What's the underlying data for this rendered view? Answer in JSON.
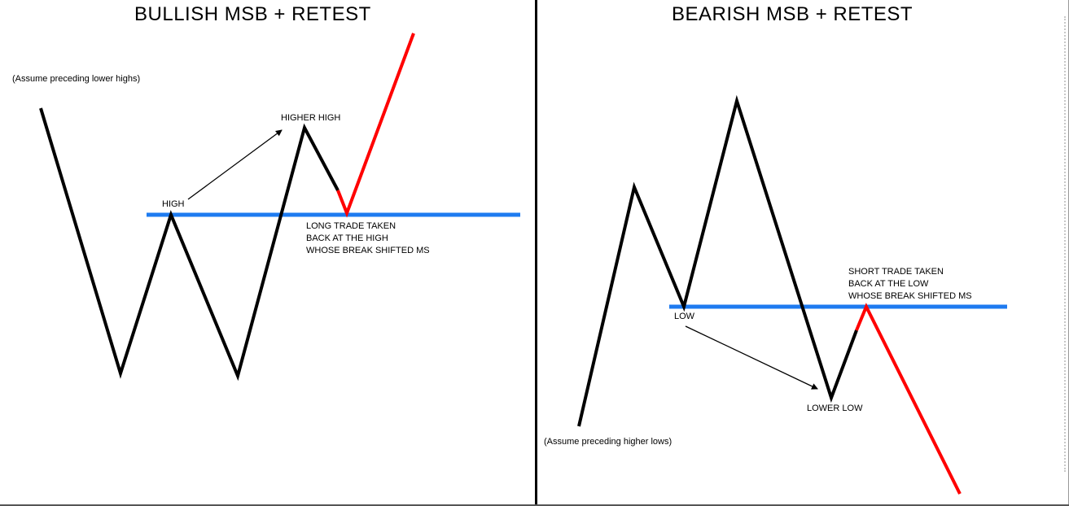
{
  "left": {
    "title": "BULLISH MSB + RETEST",
    "assumption": "(Assume preceding lower highs)",
    "high_label": "HIGH",
    "higher_high_label": "HIGHER HIGH",
    "trade_note": [
      "LONG TRADE TAKEN",
      "BACK AT THE HIGH",
      "WHOSE BREAK SHIFTED MS"
    ]
  },
  "right": {
    "title": "BEARISH MSB + RETEST",
    "assumption": "(Assume preceding higher lows)",
    "low_label": "LOW",
    "lower_low_label": "LOWER LOW",
    "trade_note": [
      "SHORT TRADE TAKEN",
      "BACK AT THE LOW",
      "WHOSE BREAK SHIFTED MS"
    ]
  },
  "colors": {
    "price_line": "#000000",
    "level_line": "#1e7bf0",
    "trade_line": "#ff0000"
  }
}
